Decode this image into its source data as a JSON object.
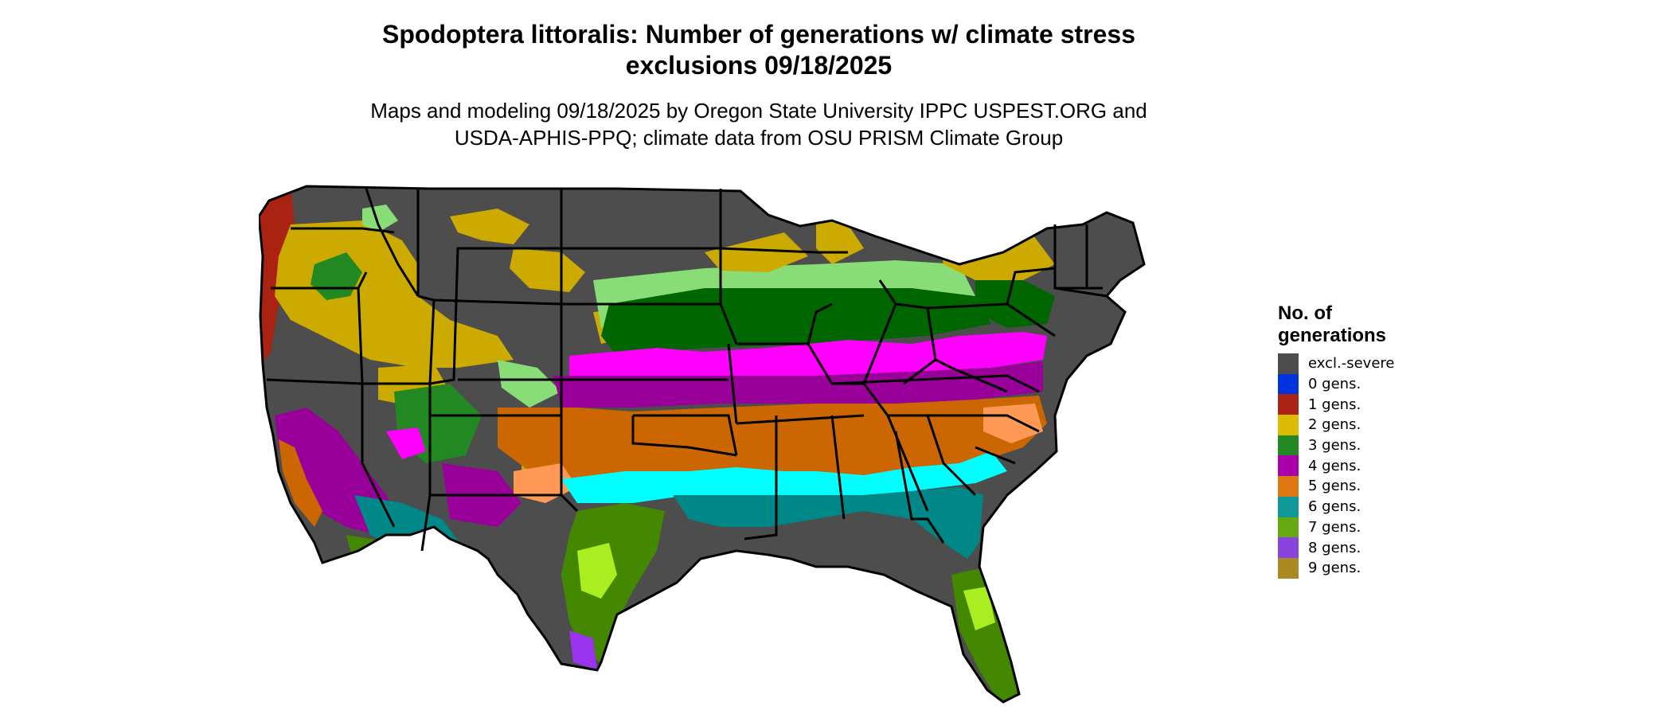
{
  "title": {
    "line1": "Spodoptera littoralis: Number of generations w/ climate stress",
    "line2": "exclusions 09/18/2025"
  },
  "subtitle": {
    "line1": "Maps and modeling 09/18/2025 by Oregon State University IPPC USPEST.ORG and",
    "line2": "USDA-APHIS-PPQ; climate data from OSU PRISM Climate Group"
  },
  "legend": {
    "title_line1": "No. of",
    "title_line2": "generations",
    "items": [
      {
        "label": "excl.-severe",
        "color": "#4d4d4d"
      },
      {
        "label": "0 gens.",
        "color": "#0033dd"
      },
      {
        "label": "1 gens.",
        "color": "#aa2211"
      },
      {
        "label": "2 gens.",
        "color": "#ddbb00"
      },
      {
        "label": "3 gens.",
        "color": "#228822"
      },
      {
        "label": "4 gens.",
        "color": "#aa00aa"
      },
      {
        "label": "5 gens.",
        "color": "#dd7711"
      },
      {
        "label": "6 gens.",
        "color": "#119999"
      },
      {
        "label": "7 gens.",
        "color": "#66aa11"
      },
      {
        "label": "8 gens.",
        "color": "#8844dd"
      },
      {
        "label": "9 gens.",
        "color": "#aa8822"
      }
    ]
  },
  "map_colors": {
    "excluded": "#4d4d4d",
    "gen2": "#ccaa00",
    "gen3_dark": "#006600",
    "gen3_light": "#88dd77",
    "gen4": "#990099",
    "gen4_bright": "#ff00ff",
    "gen5": "#cc6600",
    "gen5_light": "#ff9955",
    "gen6": "#008888",
    "gen6_light": "#00ffff",
    "gen7": "#448800",
    "gen7_light": "#aaee22",
    "gen1": "#aa2211",
    "gen8": "#9933ee",
    "border": "#000000"
  }
}
